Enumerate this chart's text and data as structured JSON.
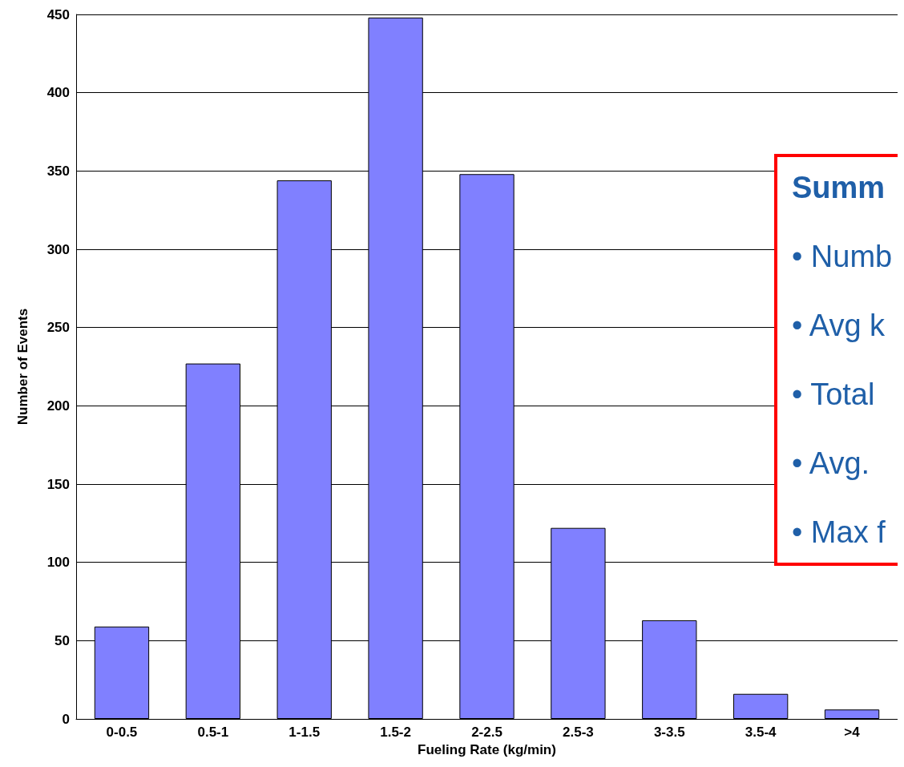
{
  "chart_data": {
    "type": "bar",
    "xlabel": "Fueling Rate (kg/min)",
    "ylabel": "Number of Events",
    "categories": [
      "0-0.5",
      "0.5-1",
      "1-1.5",
      "1.5-2",
      "2-2.5",
      "2.5-3",
      "3-3.5",
      "3.5-4",
      ">4"
    ],
    "values": [
      59,
      227,
      344,
      448,
      348,
      122,
      63,
      16,
      6
    ],
    "color": "#8080ff",
    "ylim": [
      0,
      450
    ],
    "yticks": [
      0,
      50,
      100,
      150,
      200,
      250,
      300,
      350,
      400,
      450
    ],
    "grid": "y",
    "annotations": [
      "Summ",
      "• Numb",
      "• Avg k",
      "• Total",
      "• Avg.",
      "• Max f"
    ]
  }
}
